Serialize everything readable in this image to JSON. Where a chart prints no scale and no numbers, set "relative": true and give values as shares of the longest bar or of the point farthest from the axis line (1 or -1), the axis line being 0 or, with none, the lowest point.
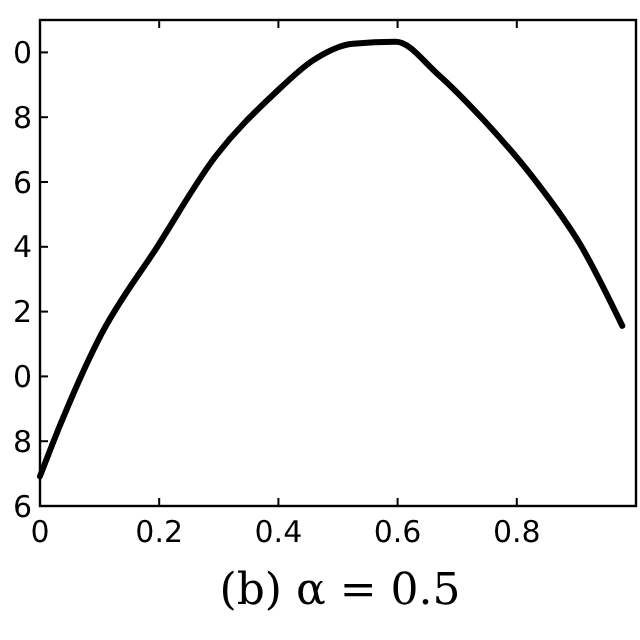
{
  "chart_data": {
    "type": "line",
    "relative": true,
    "annotations": [
      "6",
      "8",
      "0",
      "2",
      "4",
      "6",
      "8",
      "0",
      "(b) α = 0.5"
    ],
    "x": [
      0,
      0.033,
      0.098,
      0.197,
      0.295,
      0.393,
      0.459,
      0.525,
      0.597,
      0.666,
      0.744,
      0.83,
      0.908,
      0.977
    ],
    "series": [
      {
        "color": "#000000",
        "values": [
          0.064,
          0.172,
          0.358,
          0.559,
          0.754,
          0.888,
          0.961,
          0.996,
          1,
          0.932,
          0.832,
          0.703,
          0.56,
          0.388
        ]
      }
    ],
    "xlim": [
      0,
      1
    ],
    "xticks": [
      0,
      0.2,
      0.4,
      0.6,
      0.8
    ],
    "marker": "none",
    "line_style": "solid"
  }
}
